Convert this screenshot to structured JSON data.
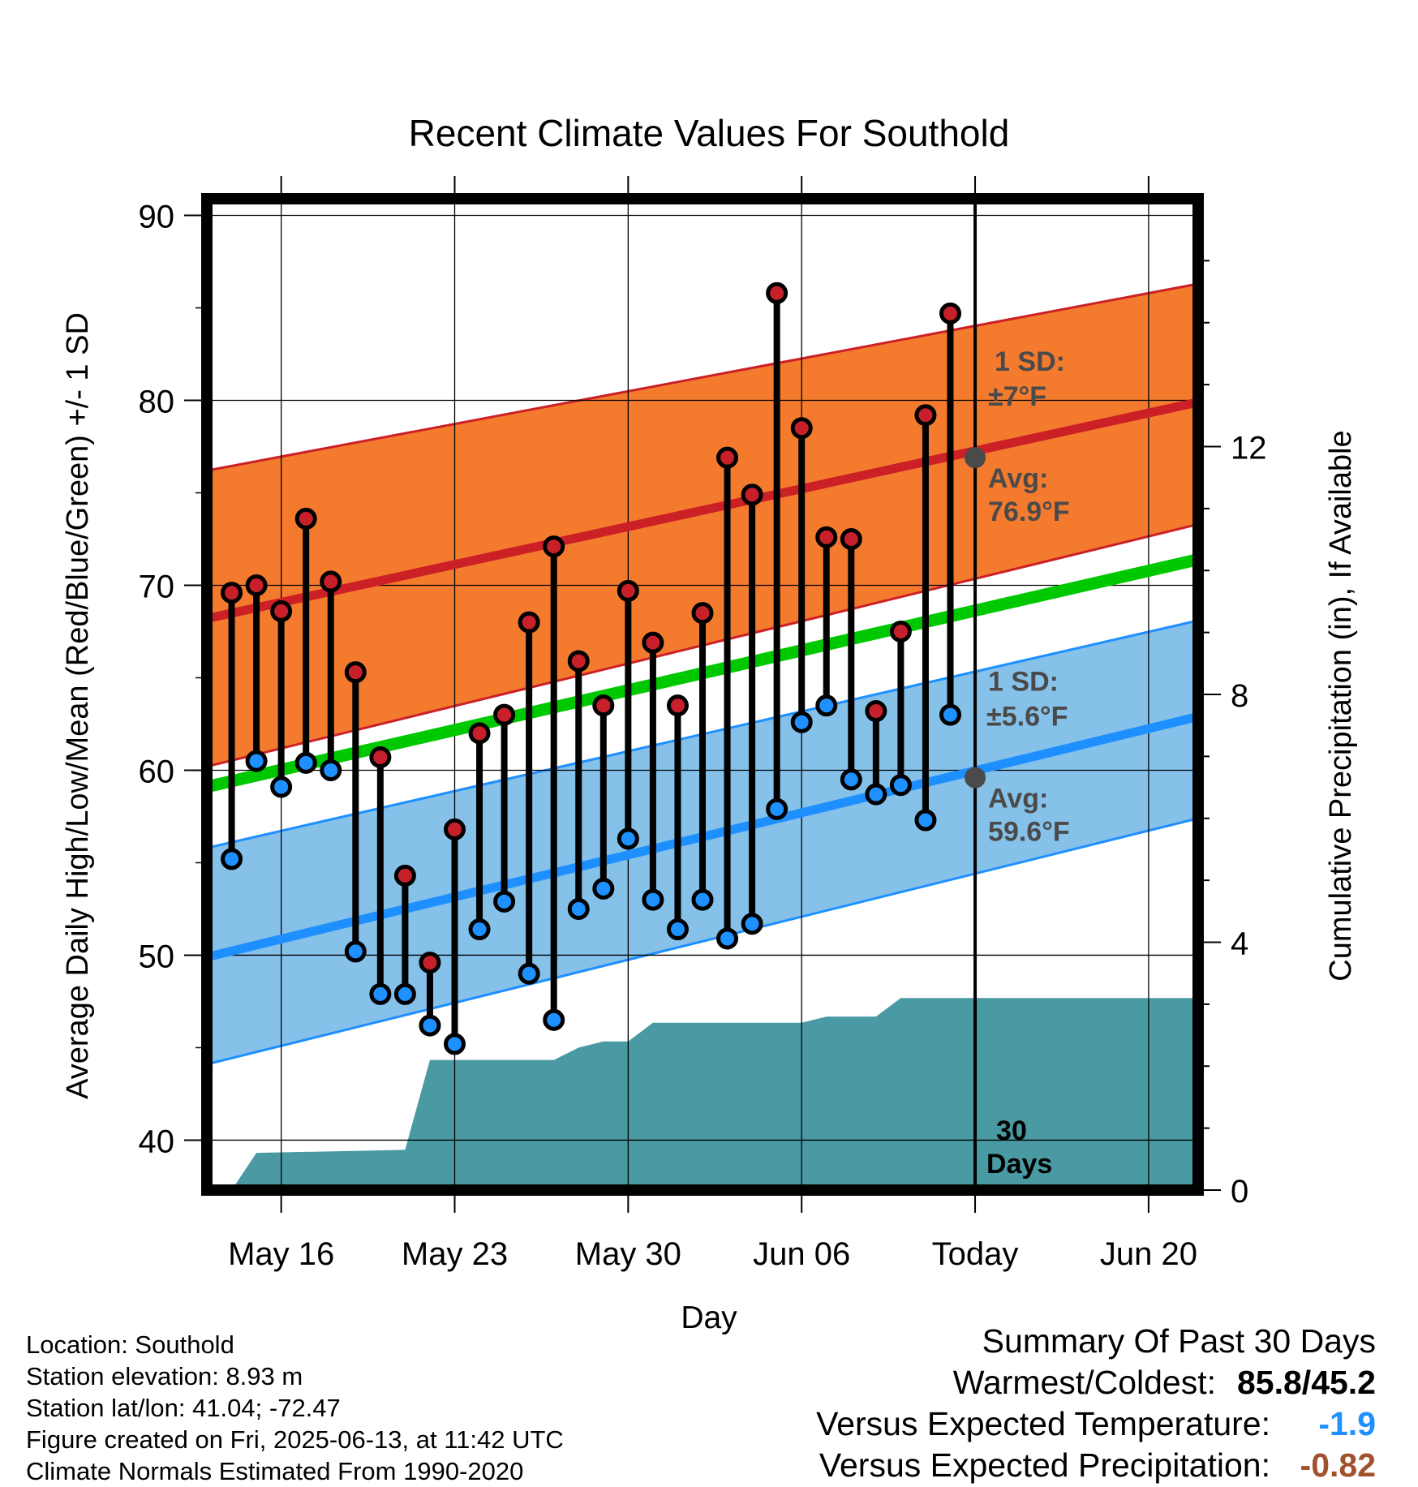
{
  "chart_data": {
    "type": "line",
    "title": "Recent Climate Values For Southold",
    "xlabel": "Day",
    "ylabel": "Average Daily High/Low/Mean (Red/Blue/Green) +/- 1 SD",
    "y2label": "Cumulative Precipitation (in), If Available",
    "ylim": [
      37.3,
      90.9
    ],
    "y2lim": [
      0,
      16
    ],
    "y_ticks": [
      "40",
      "50",
      "60",
      "70",
      "80",
      "90"
    ],
    "y2_ticks": [
      "0",
      "4",
      "8",
      "12"
    ],
    "x_range": [
      "2025-05-13",
      "2025-06-22"
    ],
    "x_ticks": [
      {
        "date": "2025-05-16",
        "label": "May 16"
      },
      {
        "date": "2025-05-23",
        "label": "May 23"
      },
      {
        "date": "2025-05-30",
        "label": "May 30"
      },
      {
        "date": "2025-06-06",
        "label": "Jun 06"
      },
      {
        "date": "2025-06-13",
        "label": "Today"
      },
      {
        "date": "2025-06-20",
        "label": "Jun 20"
      }
    ],
    "grid": true,
    "today": "2025-06-13",
    "today_label_line1": "30",
    "today_label_line2": "Days",
    "dates": [
      "2025-05-14",
      "2025-05-15",
      "2025-05-16",
      "2025-05-17",
      "2025-05-18",
      "2025-05-19",
      "2025-05-20",
      "2025-05-21",
      "2025-05-22",
      "2025-05-23",
      "2025-05-24",
      "2025-05-25",
      "2025-05-26",
      "2025-05-27",
      "2025-05-28",
      "2025-05-29",
      "2025-05-30",
      "2025-05-31",
      "2025-06-01",
      "2025-06-02",
      "2025-06-03",
      "2025-06-04",
      "2025-06-05",
      "2025-06-06",
      "2025-06-07",
      "2025-06-08",
      "2025-06-09",
      "2025-06-10",
      "2025-06-11",
      "2025-06-12"
    ],
    "series": [
      {
        "name": "High",
        "color": "#c8202a",
        "values": [
          69.6,
          70.0,
          68.6,
          73.6,
          70.2,
          65.3,
          60.7,
          54.3,
          49.6,
          56.8,
          62.0,
          63.0,
          68.0,
          72.1,
          65.9,
          63.5,
          69.7,
          66.9,
          63.5,
          68.5,
          76.9,
          74.9,
          85.8,
          78.5,
          72.6,
          72.5,
          63.2,
          67.5,
          79.2,
          84.7
        ]
      },
      {
        "name": "Low",
        "color": "#1e90ff",
        "values": [
          55.2,
          60.5,
          59.1,
          60.4,
          60.0,
          50.2,
          47.9,
          47.9,
          46.2,
          45.2,
          51.4,
          52.9,
          49.0,
          46.5,
          52.5,
          53.6,
          56.3,
          53.0,
          51.4,
          53.0,
          50.9,
          51.7,
          57.9,
          62.6,
          63.5,
          59.5,
          58.7,
          59.2,
          57.3,
          63.0
        ]
      }
    ],
    "normals": {
      "dates": [
        "2025-05-13",
        "2025-06-22"
      ],
      "high_mean": [
        68.2,
        79.9
      ],
      "high_upper": [
        76.2,
        86.3
      ],
      "high_lower": [
        60.2,
        73.3
      ],
      "low_mean": [
        49.9,
        62.9
      ],
      "low_upper": [
        55.8,
        68.1
      ],
      "low_lower": [
        44.1,
        57.4
      ],
      "mean": [
        59.1,
        71.4
      ],
      "colors": {
        "high_band": "#f47a2e",
        "high_line": "#cc2027",
        "low_band": "#85c1e9",
        "low_line": "#1e8fff",
        "mean_line": "#00c800",
        "precip": "#4a9aa3"
      }
    },
    "precip_cumulative": {
      "dates": [
        "2025-05-13",
        "2025-05-14",
        "2025-05-15",
        "2025-05-21",
        "2025-05-22",
        "2025-05-27",
        "2025-05-28",
        "2025-05-29",
        "2025-05-30",
        "2025-05-31",
        "2025-06-06",
        "2025-06-07",
        "2025-06-08",
        "2025-06-09",
        "2025-06-10",
        "2025-06-22"
      ],
      "values": [
        0.0,
        0.0,
        0.6,
        0.65,
        2.1,
        2.1,
        2.3,
        2.4,
        2.4,
        2.7,
        2.7,
        2.8,
        2.8,
        2.8,
        3.1,
        3.1
      ]
    },
    "annotations": {
      "high_sd_line1": "1 SD:",
      "high_sd_line2": "±7°F",
      "high_avg_line1": "Avg:",
      "high_avg_line2": "76.9°F",
      "low_sd_line1": "1 SD:",
      "low_sd_line2": "±5.6°F",
      "low_avg_line1": "Avg:",
      "low_avg_line2": "59.6°F",
      "high_avg_value": 76.9,
      "low_avg_value": 59.6
    }
  },
  "footer": {
    "location": "Location: Southold",
    "elevation": "Station elevation: 8.93 m",
    "latlon": "Station lat/lon: 41.04; -72.47",
    "created": "Figure created on Fri, 2025-06-13, at 11:42 UTC",
    "normals": "Climate Normals Estimated From 1990-2020"
  },
  "summary": {
    "title": "Summary Of Past 30 Days",
    "warmest_label": "Warmest/Coldest:",
    "warmest_value": "85.8/45.2",
    "temp_label": "Versus Expected Temperature:",
    "temp_value": "-1.9",
    "temp_color": "#1e90ff",
    "precip_label": "Versus Expected Precipitation:",
    "precip_value": "-0.82",
    "precip_color": "#a0522d"
  }
}
